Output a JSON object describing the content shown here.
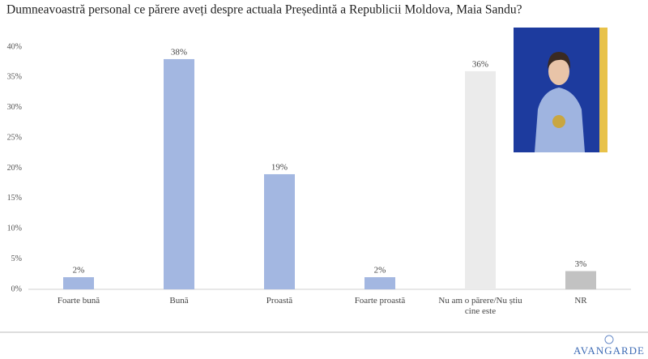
{
  "chart_data": {
    "type": "bar",
    "title": "Dumneavoastră personal ce părere aveți despre actuala Președintă a Republicii Moldova, Maia Sandu?",
    "categories": [
      "Foarte bună",
      "Bună",
      "Proastă",
      "Foarte proastă",
      "Nu am o părere/Nu știu cine este",
      "NR"
    ],
    "values": [
      2,
      38,
      19,
      2,
      36,
      3
    ],
    "value_labels": [
      "2%",
      "38%",
      "19%",
      "2%",
      "36%",
      "3%"
    ],
    "colors": [
      "#a3b7e1",
      "#a3b7e1",
      "#a3b7e1",
      "#a3b7e1",
      "#ebebeb",
      "#c2c2c2"
    ],
    "ylim": [
      0,
      40
    ],
    "yticks": [
      {
        "value": 0,
        "label": "0%"
      },
      {
        "value": 5,
        "label": "5%"
      },
      {
        "value": 10,
        "label": "10%"
      },
      {
        "value": 15,
        "label": "15%"
      },
      {
        "value": 20,
        "label": "20%"
      },
      {
        "value": 25,
        "label": "25%"
      },
      {
        "value": 30,
        "label": "30%"
      },
      {
        "value": 35,
        "label": "35%"
      },
      {
        "value": 40,
        "label": "40%"
      }
    ],
    "grid": false
  },
  "footer": {
    "logo": "AVANGARDE"
  }
}
